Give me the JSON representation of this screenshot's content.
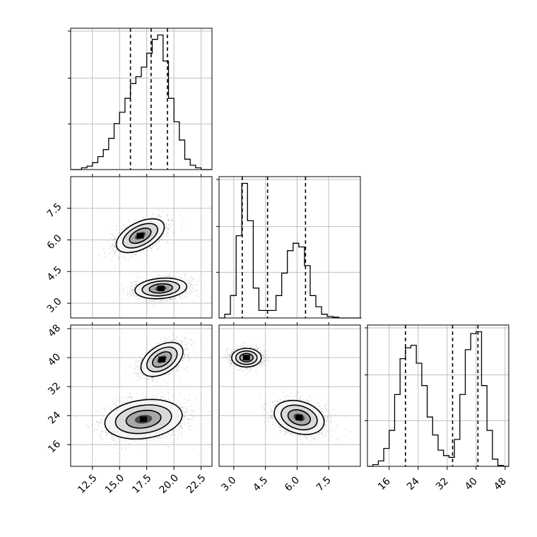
{
  "chart_data": {
    "type": "corner",
    "grid": true,
    "parameters": [
      {
        "index": 0,
        "range": [
          10.5,
          23.5
        ],
        "ticks": [
          12.5,
          15.0,
          17.5,
          20.0,
          22.5
        ],
        "tick_labels": [
          "12.5",
          "15.0",
          "17.5",
          "20.0",
          "22.5"
        ],
        "quantiles": [
          16.0,
          17.9,
          19.4
        ],
        "hist_bins": [
          10.5,
          11.0,
          11.5,
          12.0,
          12.5,
          13.0,
          13.5,
          14.0,
          14.5,
          15.0,
          15.5,
          16.0,
          16.5,
          17.0,
          17.5,
          18.0,
          18.5,
          19.0,
          19.5,
          20.0,
          20.5,
          21.0,
          21.5,
          22.0,
          22.5,
          23.0,
          23.5
        ],
        "hist_counts": [
          0,
          0,
          2,
          4,
          8,
          15,
          23,
          36,
          53,
          66,
          82,
          99,
          107,
          118,
          134,
          150,
          155,
          125,
          82,
          55,
          34,
          12,
          5,
          2,
          0,
          0
        ]
      },
      {
        "index": 1,
        "range": [
          2.3,
          9.0
        ],
        "ticks": [
          3.0,
          4.5,
          6.0,
          7.5
        ],
        "tick_labels": [
          "3.0",
          "4.5",
          "6.0",
          "7.5"
        ],
        "quantiles": [
          3.4,
          4.6,
          6.4
        ],
        "hist_bins": [
          2.3,
          2.57,
          2.84,
          3.11,
          3.38,
          3.65,
          3.92,
          4.19,
          4.46,
          4.73,
          5.0,
          5.27,
          5.54,
          5.81,
          6.08,
          6.35,
          6.62,
          6.89,
          7.16,
          7.43,
          7.7,
          7.97,
          8.24,
          8.51,
          8.78,
          9.05
        ],
        "hist_counts": [
          0,
          5,
          30,
          110,
          180,
          130,
          40,
          10,
          10,
          10,
          30,
          60,
          90,
          100,
          95,
          70,
          30,
          15,
          5,
          2,
          1,
          0,
          0,
          0,
          0
        ]
      },
      {
        "index": 2,
        "range": [
          10.0,
          49.0
        ],
        "ticks": [
          16,
          24,
          32,
          40,
          48
        ],
        "tick_labels": [
          "16",
          "24",
          "32",
          "40",
          "48"
        ],
        "quantiles": [
          20.5,
          33.5,
          40.5
        ],
        "hist_bins": [
          10,
          11.5,
          13,
          14.5,
          16,
          17.5,
          19,
          20.5,
          22,
          23.5,
          25,
          26.5,
          28,
          29.5,
          31,
          32.5,
          34,
          35.5,
          37,
          38.5,
          40,
          41.5,
          43,
          44.5,
          46,
          47.5,
          49
        ],
        "hist_counts": [
          0,
          2,
          6,
          20,
          40,
          80,
          120,
          132,
          135,
          115,
          90,
          55,
          35,
          18,
          12,
          10,
          30,
          80,
          130,
          148,
          150,
          90,
          40,
          8,
          1,
          0
        ]
      }
    ],
    "scatter_panels": [
      {
        "x_param": 0,
        "y_param": 1,
        "modes": [
          {
            "center": [
              16.9,
              6.2
            ],
            "spread": [
              1.3,
              0.5
            ],
            "rotation_deg": 35,
            "count": 2200
          },
          {
            "center": [
              18.8,
              3.7
            ],
            "spread": [
              1.2,
              0.38
            ],
            "rotation_deg": 8,
            "count": 2200
          }
        ]
      },
      {
        "x_param": 0,
        "y_param": 2,
        "modes": [
          {
            "center": [
              18.9,
              39.5
            ],
            "spread": [
              1.1,
              3.0
            ],
            "rotation_deg": 35,
            "count": 2000
          },
          {
            "center": [
              17.2,
              23.0
            ],
            "spread": [
              1.8,
              4.2
            ],
            "rotation_deg": 10,
            "count": 2600
          }
        ]
      },
      {
        "x_param": 1,
        "y_param": 2,
        "modes": [
          {
            "center": [
              3.6,
              40.0
            ],
            "spread": [
              0.35,
              3.0
            ],
            "rotation_deg": 0,
            "count": 2000
          },
          {
            "center": [
              6.1,
              23.5
            ],
            "spread": [
              0.6,
              4.0
            ],
            "rotation_deg": -15,
            "count": 2600
          }
        ]
      }
    ]
  }
}
